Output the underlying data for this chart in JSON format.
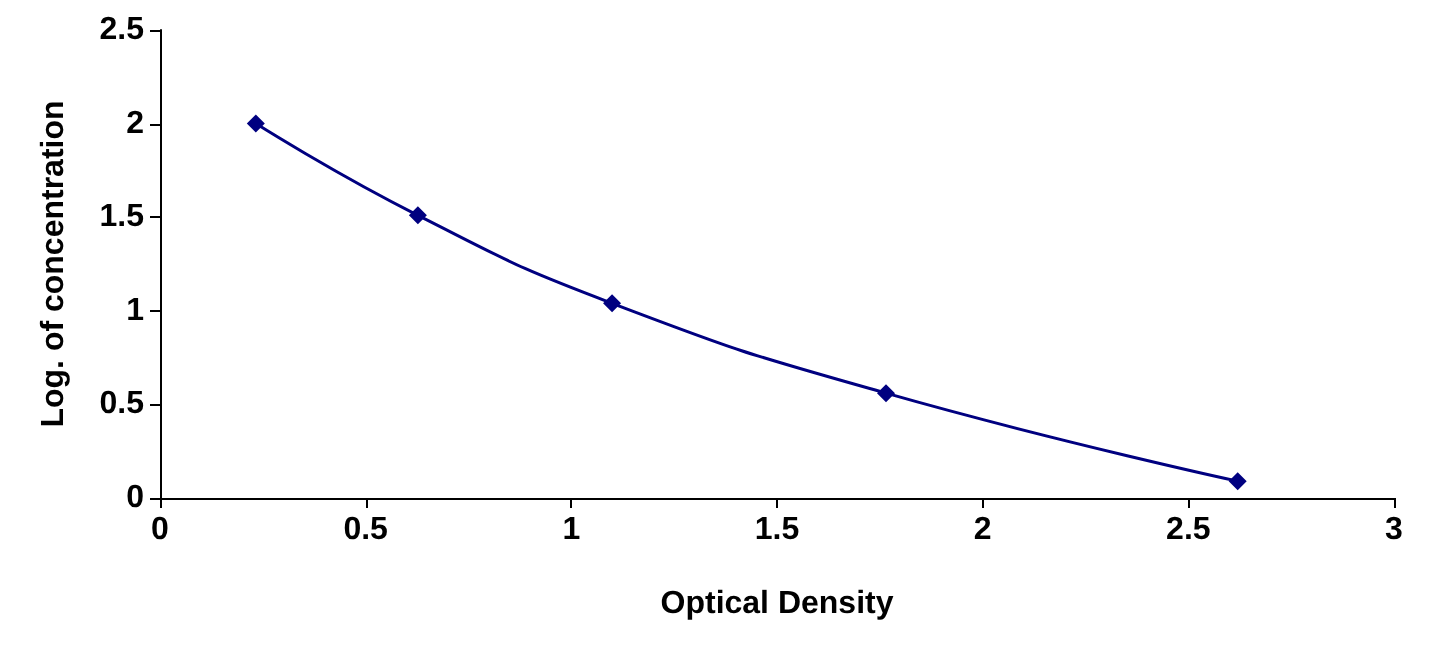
{
  "chart_data": {
    "type": "line",
    "xlabel": "Optical Density",
    "ylabel": "Log. of concentration",
    "series": [
      {
        "color": "#000080",
        "x": [
          0.233,
          0.627,
          1.099,
          1.765,
          2.62
        ],
        "values": [
          2.0,
          1.51,
          1.04,
          0.56,
          0.09
        ]
      }
    ],
    "xlim": [
      0,
      3
    ],
    "xticks": [
      0,
      0.5,
      1,
      1.5,
      2,
      2.5,
      3
    ],
    "ylim": [
      0,
      2.5
    ],
    "yticks": [
      0,
      0.5,
      1,
      1.5,
      2,
      2.5
    ],
    "grid": false,
    "marker": "diamond",
    "line_style": "solid"
  }
}
